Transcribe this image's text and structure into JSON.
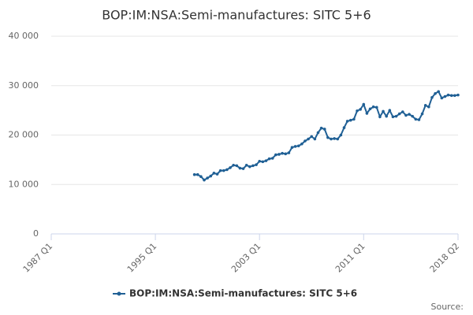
{
  "chart_data": {
    "type": "line",
    "title": "BOP:IM:NSA:Semi-manufactures: SITC 5+6",
    "source": "Source:",
    "categories": [
      "1987 Q1",
      null,
      null,
      null,
      null,
      null,
      null,
      null,
      null,
      null,
      null,
      null,
      null,
      null,
      null,
      null,
      null,
      null,
      null,
      null,
      null,
      null,
      null,
      null,
      null,
      null,
      null,
      null,
      null,
      null,
      null,
      null,
      "1995 Q1",
      null,
      null,
      null,
      null,
      null,
      null,
      null,
      null,
      null,
      null,
      null,
      null,
      null,
      null,
      null,
      null,
      null,
      null,
      null,
      null,
      null,
      null,
      null,
      null,
      null,
      null,
      null,
      null,
      null,
      null,
      null,
      "2003 Q1",
      null,
      null,
      null,
      null,
      null,
      null,
      null,
      null,
      null,
      null,
      null,
      null,
      null,
      null,
      null,
      null,
      null,
      null,
      null,
      null,
      null,
      null,
      null,
      null,
      null,
      null,
      null,
      null,
      null,
      null,
      null,
      "2011 Q1",
      null,
      null,
      null,
      null,
      null,
      null,
      null,
      null,
      null,
      null,
      null,
      null,
      null,
      null,
      null,
      null,
      null,
      null,
      null,
      null,
      null,
      null,
      null,
      null,
      null,
      null,
      null,
      null,
      "2018 Q2"
    ],
    "series": [
      {
        "name": "BOP:IM:NSA:Semi-manufactures: SITC 5+6",
        "color": "#206095",
        "values": [
          null,
          null,
          null,
          null,
          null,
          null,
          null,
          null,
          null,
          null,
          null,
          null,
          null,
          null,
          null,
          null,
          null,
          null,
          null,
          null,
          null,
          null,
          null,
          null,
          null,
          null,
          null,
          null,
          null,
          null,
          null,
          null,
          null,
          null,
          null,
          null,
          null,
          null,
          null,
          null,
          null,
          null,
          null,
          null,
          12000,
          12000,
          11600,
          10900,
          11300,
          11700,
          12300,
          12100,
          12800,
          12800,
          13000,
          13400,
          13900,
          13800,
          13300,
          13200,
          13900,
          13600,
          13800,
          14000,
          14700,
          14600,
          14800,
          15200,
          15300,
          16000,
          16100,
          16300,
          16200,
          16400,
          17500,
          17700,
          17800,
          18200,
          18800,
          19200,
          19700,
          19200,
          20500,
          21400,
          21200,
          19500,
          19200,
          19300,
          19200,
          20000,
          21500,
          22800,
          23000,
          23200,
          24900,
          25200,
          26200,
          24400,
          25300,
          25700,
          25600,
          23700,
          24800,
          23800,
          25000,
          23700,
          23800,
          24300,
          24700,
          24000,
          24200,
          23800,
          23200,
          23100,
          24300,
          26000,
          25700,
          27600,
          28400,
          28800,
          27500,
          27800,
          28100,
          28000,
          28000,
          28100
        ]
      }
    ],
    "ylim": [
      0,
      40000
    ],
    "yticks": [
      0,
      {
        "value": 10000,
        "label": "10 000"
      },
      {
        "value": 20000,
        "label": "20 000"
      },
      {
        "value": 30000,
        "label": "30 000"
      },
      {
        "value": 40000,
        "label": "40 000"
      }
    ],
    "grid": true
  }
}
